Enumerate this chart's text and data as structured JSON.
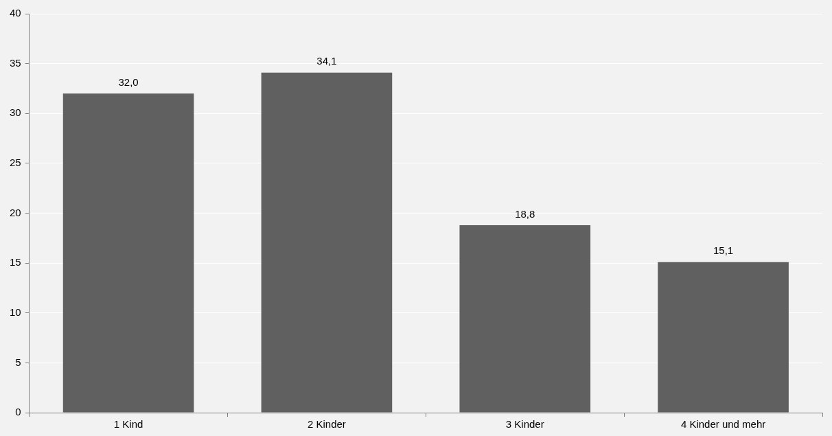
{
  "chart_data": {
    "type": "bar",
    "categories": [
      "1 Kind",
      "2 Kinder",
      "3 Kinder",
      "4 Kinder und mehr"
    ],
    "values": [
      32.0,
      34.1,
      18.8,
      15.1
    ],
    "color": "#606060",
    "value_labels": [
      "32,0",
      "34,1",
      "18,8",
      "15,1"
    ],
    "ylim": [
      0,
      40
    ],
    "yticks": [
      0,
      5,
      10,
      15,
      20,
      25,
      30,
      35,
      40
    ],
    "grid": "y",
    "legend": false
  }
}
